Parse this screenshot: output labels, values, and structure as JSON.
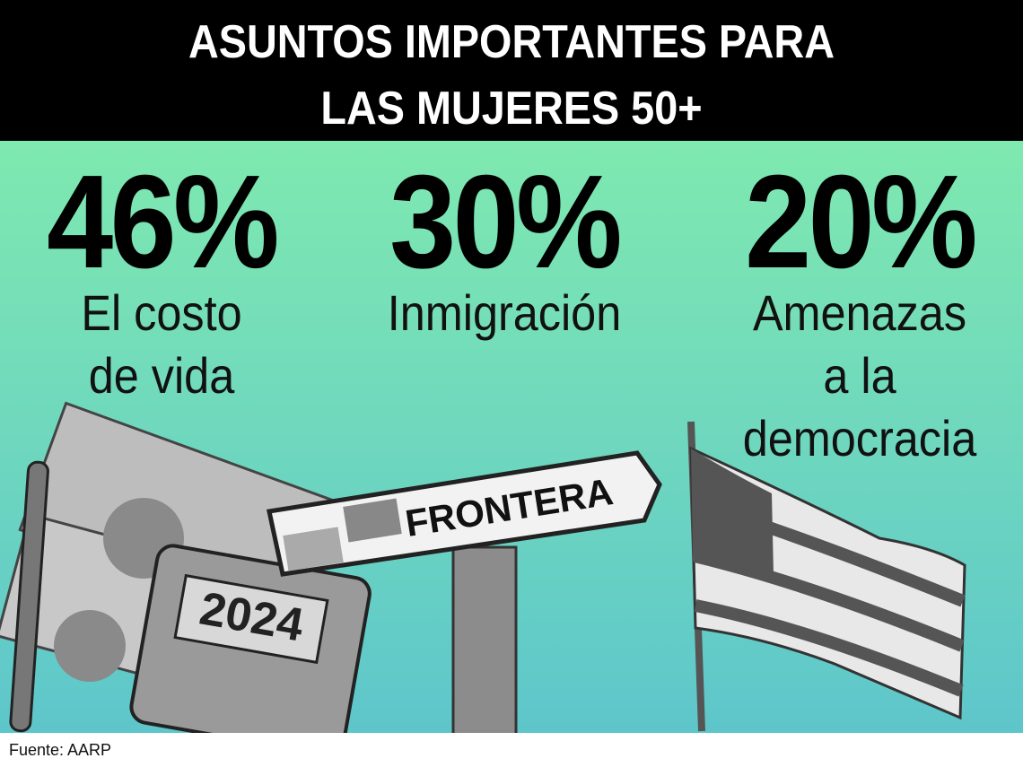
{
  "header": {
    "title_lines": [
      "ASUNTOS IMPORTANTES PARA",
      "LAS MUJERES 50+"
    ]
  },
  "stats": [
    {
      "percent": "46%",
      "label_lines": [
        "El costo",
        "de vida"
      ]
    },
    {
      "percent": "30%",
      "label_lines": [
        "Inmigración"
      ]
    },
    {
      "percent": "20%",
      "label_lines": [
        "Amenazas",
        "a la",
        "democracia"
      ]
    }
  ],
  "illustrations": {
    "calculator_display": "2024",
    "sign": "FRONTERA"
  },
  "footer": {
    "source": "Fuente: AARP"
  }
}
